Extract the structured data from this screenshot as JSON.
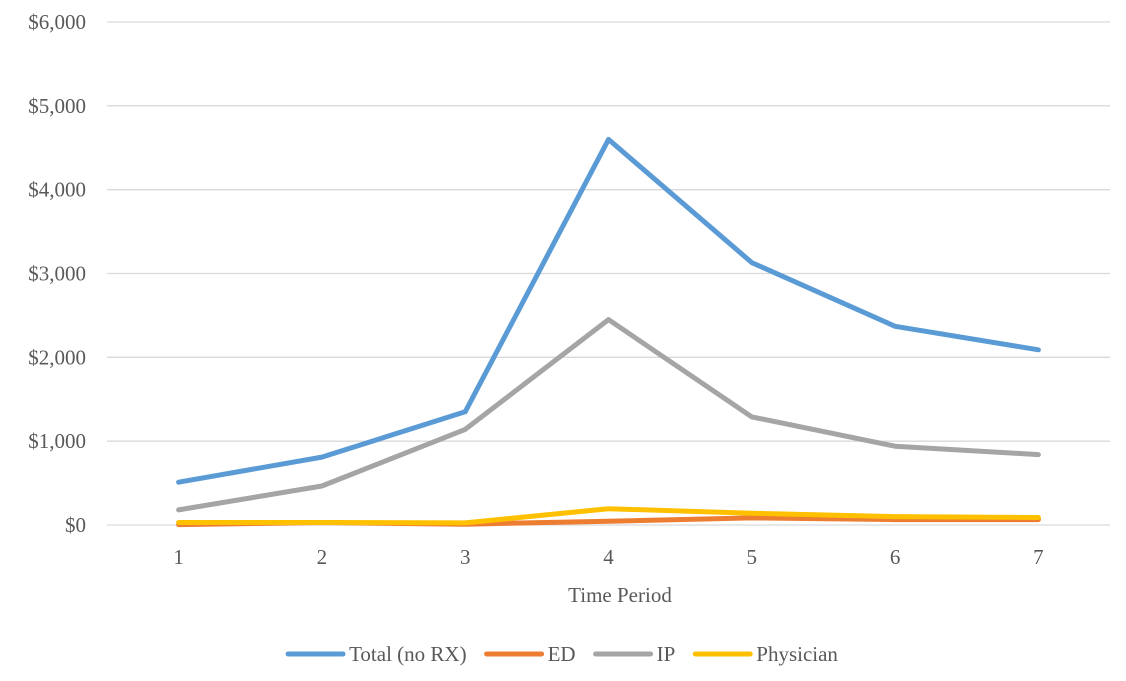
{
  "chart_data": {
    "type": "line",
    "title": "",
    "xlabel": "Time Period",
    "ylabel": "",
    "x": [
      "1",
      "2",
      "3",
      "4",
      "5",
      "6",
      "7"
    ],
    "ylim": [
      0,
      6000
    ],
    "yticks": [
      0,
      1000,
      2000,
      3000,
      4000,
      5000,
      6000
    ],
    "ytick_labels": [
      "$0",
      "$1,000",
      "$2,000",
      "$3,000",
      "$4,000",
      "$5,000",
      "$6,000"
    ],
    "grid": true,
    "legend_position": "bottom",
    "series": [
      {
        "name": "Total (no RX)",
        "color": "#5B9BD5",
        "values": [
          510,
          810,
          1350,
          4600,
          3130,
          2370,
          2090
        ]
      },
      {
        "name": "ED",
        "color": "#ED7D31",
        "values": [
          5,
          30,
          10,
          45,
          85,
          65,
          65
        ]
      },
      {
        "name": "IP",
        "color": "#A5A5A5",
        "values": [
          180,
          465,
          1140,
          2450,
          1290,
          940,
          840
        ]
      },
      {
        "name": "Physician",
        "color": "#FFC000",
        "values": [
          30,
          30,
          25,
          195,
          140,
          100,
          90
        ]
      }
    ]
  }
}
